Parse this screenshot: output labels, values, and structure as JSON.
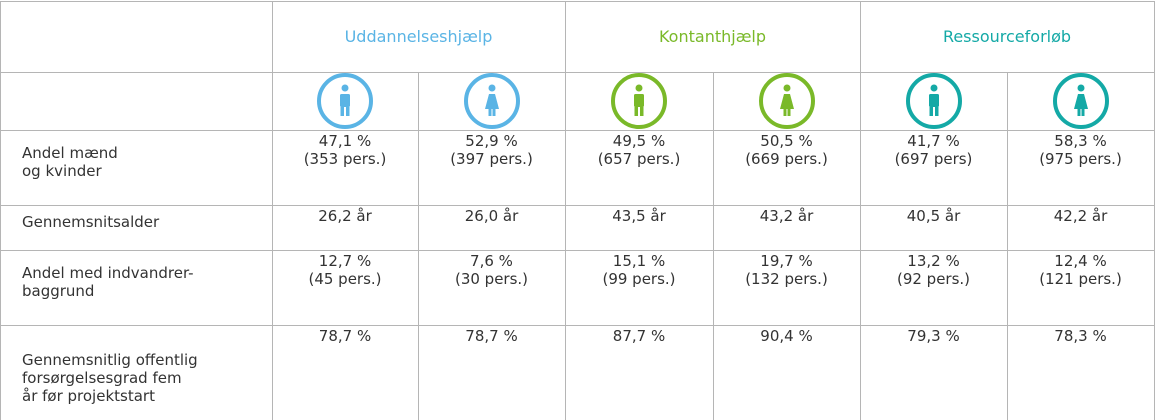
{
  "table": {
    "groups": [
      {
        "name": "Uddannelseshjælp",
        "color": "#5ab4e5"
      },
      {
        "name": "Kontanthjælp",
        "color": "#7ab929"
      },
      {
        "name": "Ressourceforløb",
        "color": "#14a9a6"
      }
    ],
    "rows": [
      {
        "label": [
          "Andel mænd",
          "og kvinder"
        ],
        "cells": [
          [
            "47,1 %",
            "(353 pers.)"
          ],
          [
            "52,9 %",
            "(397 pers.)"
          ],
          [
            "49,5 %",
            "(657 pers.)"
          ],
          [
            "50,5 %",
            "(669 pers.)"
          ],
          [
            "41,7 %",
            "(697 pers)"
          ],
          [
            "58,3 %",
            "(975 pers.)"
          ]
        ]
      },
      {
        "label": [
          "Gennemsnitsalder"
        ],
        "cells": [
          [
            "26,2 år"
          ],
          [
            "26,0 år"
          ],
          [
            "43,5 år"
          ],
          [
            "43,2 år"
          ],
          [
            "40,5 år"
          ],
          [
            "42,2 år"
          ]
        ]
      },
      {
        "label": [
          "Andel med indvandrer-",
          "baggrund"
        ],
        "cells": [
          [
            "12,7 %",
            "(45 pers.)"
          ],
          [
            "7,6 %",
            "(30 pers.)"
          ],
          [
            "15,1 %",
            "(99 pers.)"
          ],
          [
            "19,7 %",
            "(132 pers.)"
          ],
          [
            "13,2 %",
            "(92 pers.)"
          ],
          [
            "12,4 %",
            "(121 pers.)"
          ]
        ]
      },
      {
        "label": [
          "Gennemsnitlig offentlig",
          "forsørgelsesgrad fem",
          "år før projektstart"
        ],
        "cells": [
          [
            "78,7 %"
          ],
          [
            "78,7 %"
          ],
          [
            "87,7 %"
          ],
          [
            "90,4 %"
          ],
          [
            "79,3 %"
          ],
          [
            "78,3 %"
          ]
        ]
      }
    ]
  }
}
